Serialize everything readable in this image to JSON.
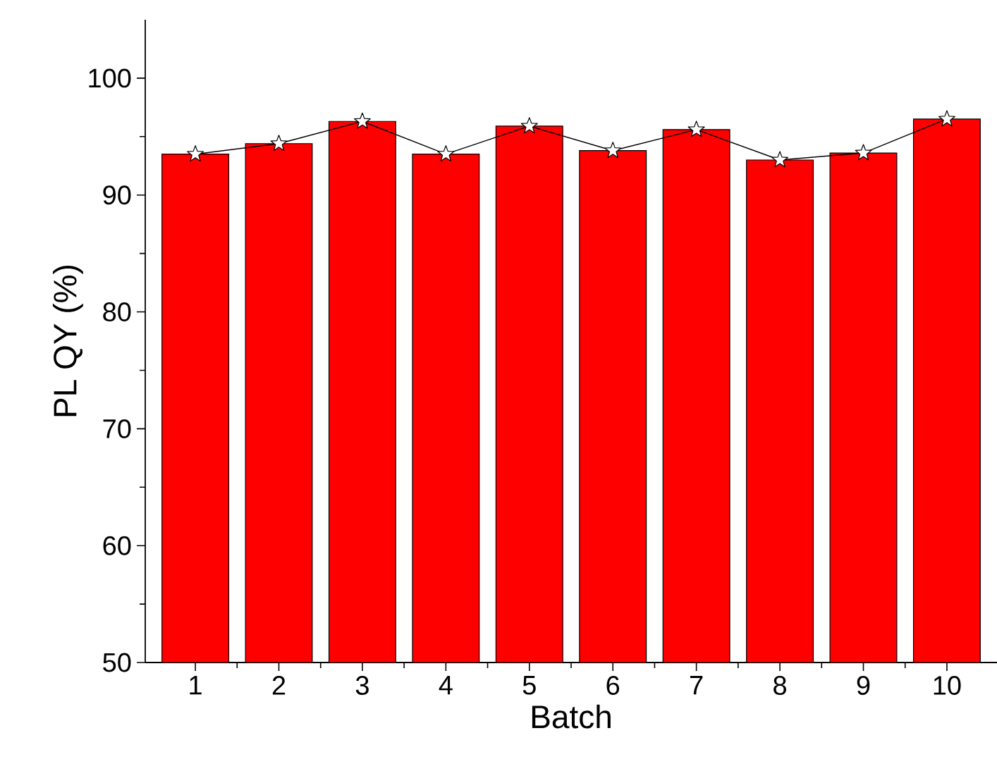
{
  "chart_data": {
    "type": "bar",
    "xlabel": "Batch",
    "ylabel": "PL QY (%)",
    "categories": [
      "1",
      "2",
      "3",
      "4",
      "5",
      "6",
      "7",
      "8",
      "9",
      "10"
    ],
    "series": [
      {
        "color": "#ff0000",
        "values": [
          93.5,
          94.4,
          96.3,
          93.5,
          95.9,
          93.8,
          95.6,
          93.0,
          93.6,
          96.5
        ]
      },
      {
        "type": "line",
        "color": "#000000",
        "marker": "star",
        "values": [
          93.5,
          94.4,
          96.3,
          93.5,
          95.9,
          93.8,
          95.6,
          93.0,
          93.6,
          96.5
        ]
      }
    ],
    "ylim": [
      50,
      105
    ],
    "yticks": [
      50,
      60,
      70,
      80,
      90,
      100
    ]
  }
}
